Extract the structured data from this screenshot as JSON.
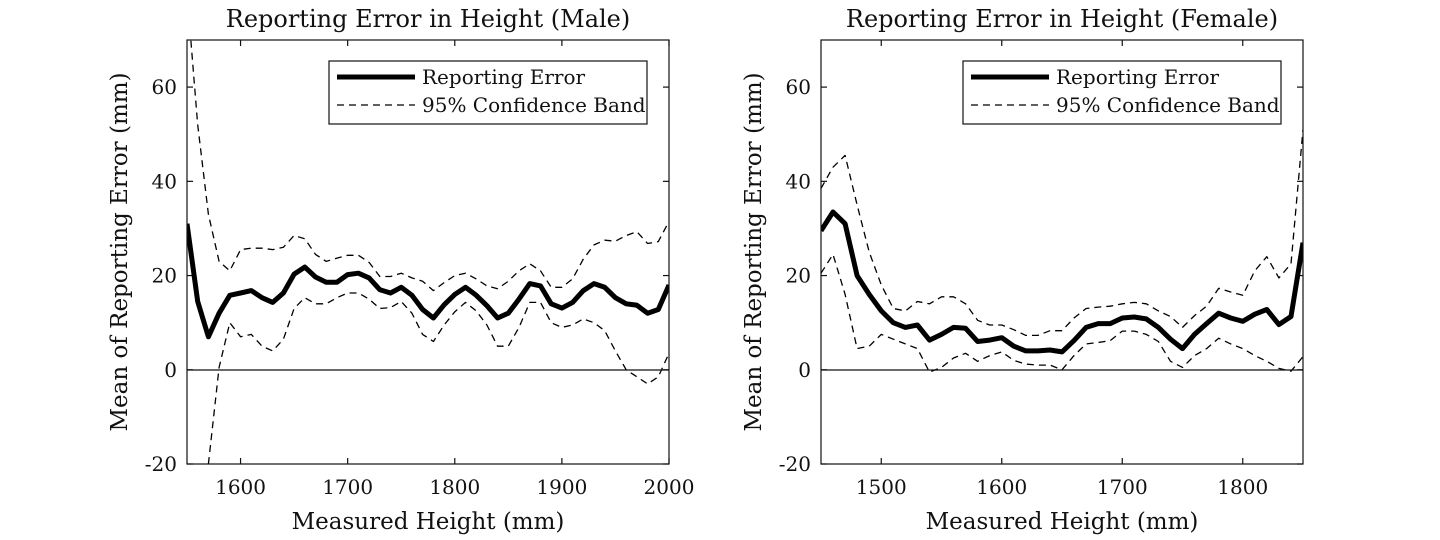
{
  "chart_data": [
    {
      "type": "line",
      "title": "Reporting Error in Height (Male)",
      "xlabel": "Measured Height (mm)",
      "ylabel": "Mean of Reporting Error (mm)",
      "xlim": [
        1550,
        2000
      ],
      "ylim": [
        -20,
        70
      ],
      "xticks": [
        1600,
        1700,
        1800,
        1900,
        2000
      ],
      "yticks": [
        -20,
        0,
        20,
        40,
        60
      ],
      "reference_line_y": 0,
      "legend": {
        "position": "top-right",
        "entries": [
          "Reporting Error",
          "95% Confidence Band"
        ]
      },
      "series": [
        {
          "name": "Reporting Error",
          "x": [
            1550,
            1560,
            1570,
            1580,
            1590,
            1600,
            1610,
            1620,
            1630,
            1640,
            1650,
            1660,
            1670,
            1680,
            1690,
            1700,
            1710,
            1720,
            1730,
            1740,
            1750,
            1760,
            1770,
            1780,
            1790,
            1800,
            1810,
            1820,
            1830,
            1840,
            1850,
            1860,
            1870,
            1880,
            1890,
            1900,
            1910,
            1920,
            1930,
            1940,
            1950,
            1960,
            1970,
            1980,
            1990,
            2000
          ],
          "y": [
            31,
            14.5,
            7,
            12,
            15.8,
            16.3,
            16.8,
            15.3,
            14.3,
            16.3,
            20.3,
            21.8,
            19.7,
            18.6,
            18.6,
            20.2,
            20.5,
            19.5,
            17,
            16.3,
            17.5,
            15.8,
            12.8,
            11,
            13.8,
            16,
            17.5,
            15.8,
            13.6,
            11,
            12,
            15,
            18.3,
            17.8,
            14,
            13.1,
            14.3,
            16.8,
            18.3,
            17.5,
            15.3,
            14,
            13.7,
            12,
            12.8,
            18
          ]
        },
        {
          "name": "95% Confidence Band",
          "x": [
            1550,
            1560,
            1570,
            1580,
            1590,
            1600,
            1610,
            1620,
            1630,
            1640,
            1650,
            1660,
            1670,
            1680,
            1690,
            1700,
            1710,
            1720,
            1730,
            1740,
            1750,
            1760,
            1770,
            1780,
            1790,
            1800,
            1810,
            1820,
            1830,
            1840,
            1850,
            1860,
            1870,
            1880,
            1890,
            1900,
            1910,
            1920,
            1930,
            1940,
            1950,
            1960,
            1970,
            1980,
            1990,
            2000
          ],
          "y": [
            80,
            52,
            33,
            23,
            21,
            25.5,
            25.8,
            25.8,
            25.5,
            26,
            28.5,
            27.8,
            24.5,
            23,
            23.7,
            24.3,
            24.3,
            22.8,
            19.8,
            19.8,
            20.5,
            19.5,
            18.8,
            16.8,
            18.5,
            20,
            20.5,
            19.3,
            17.8,
            17.2,
            18.8,
            21,
            22.5,
            21,
            17.5,
            17.5,
            19.3,
            23.5,
            26.5,
            27.5,
            27.3,
            28.5,
            29.3,
            26.8,
            27.2,
            31.5
          ]
        },
        {
          "name": "95% Confidence Band",
          "x": [
            1570,
            1580,
            1590,
            1600,
            1610,
            1620,
            1630,
            1640,
            1650,
            1660,
            1670,
            1680,
            1690,
            1700,
            1710,
            1720,
            1730,
            1740,
            1750,
            1760,
            1770,
            1780,
            1790,
            1800,
            1810,
            1820,
            1830,
            1840,
            1850,
            1860,
            1870,
            1880,
            1890,
            1900,
            1910,
            1920,
            1930,
            1940,
            1950,
            1960,
            1970,
            1980,
            1990,
            2000
          ],
          "y": [
            -20,
            0.5,
            10,
            7,
            7.5,
            5,
            4,
            6.5,
            13,
            15.3,
            14,
            14,
            15.3,
            16.3,
            16.3,
            15,
            13,
            13.2,
            14.5,
            12,
            7.5,
            6,
            9.5,
            12.3,
            14.3,
            12.5,
            9.5,
            5,
            5,
            9,
            14.3,
            14.3,
            10,
            9,
            9.5,
            10.8,
            10,
            8.3,
            4,
            0,
            -1.5,
            -3,
            -1.5,
            3.5
          ]
        }
      ]
    },
    {
      "type": "line",
      "title": "Reporting Error in Height (Female)",
      "xlabel": "Measured Height (mm)",
      "ylabel": "Mean of Reporting Error (mm)",
      "xlim": [
        1450,
        1850
      ],
      "ylim": [
        -20,
        70
      ],
      "xticks": [
        1500,
        1600,
        1700,
        1800
      ],
      "yticks": [
        -20,
        0,
        20,
        40,
        60
      ],
      "reference_line_y": 0,
      "legend": {
        "position": "top-right",
        "entries": [
          "Reporting Error",
          "95% Confidence Band"
        ]
      },
      "series": [
        {
          "name": "Reporting Error",
          "x": [
            1450,
            1460,
            1470,
            1480,
            1490,
            1500,
            1510,
            1520,
            1530,
            1540,
            1550,
            1560,
            1570,
            1580,
            1590,
            1600,
            1610,
            1620,
            1630,
            1640,
            1650,
            1660,
            1670,
            1680,
            1690,
            1700,
            1710,
            1720,
            1730,
            1740,
            1750,
            1760,
            1770,
            1780,
            1790,
            1800,
            1810,
            1820,
            1830,
            1840,
            1850
          ],
          "y": [
            29.5,
            33.5,
            31,
            20,
            16,
            12.5,
            10,
            9,
            9.5,
            6.3,
            7.5,
            9,
            8.8,
            6,
            6.3,
            6.8,
            5,
            4,
            4,
            4.2,
            3.8,
            6.2,
            9,
            9.8,
            9.8,
            11,
            11.2,
            10.8,
            9,
            6.5,
            4.5,
            7.5,
            9.8,
            12,
            11,
            10.3,
            11.8,
            12.8,
            9.6,
            11.3,
            27
          ]
        },
        {
          "name": "95% Confidence Band",
          "x": [
            1450,
            1460,
            1470,
            1480,
            1490,
            1500,
            1510,
            1520,
            1530,
            1540,
            1550,
            1560,
            1570,
            1580,
            1590,
            1600,
            1610,
            1620,
            1630,
            1640,
            1650,
            1660,
            1670,
            1680,
            1690,
            1700,
            1710,
            1720,
            1730,
            1740,
            1750,
            1760,
            1770,
            1780,
            1790,
            1800,
            1810,
            1820,
            1830,
            1840,
            1850
          ],
          "y": [
            38.5,
            43,
            45.5,
            35,
            25,
            18,
            13,
            12.5,
            14.5,
            14,
            15.5,
            15.5,
            14,
            10.5,
            9.5,
            9.5,
            8.5,
            7.3,
            7.3,
            8.3,
            8.3,
            11,
            13,
            13.3,
            13.5,
            14,
            14.3,
            14,
            12.5,
            11.3,
            9,
            11.5,
            13.5,
            17.3,
            16.5,
            15.8,
            21,
            24,
            19.5,
            22.5,
            51
          ]
        },
        {
          "name": "95% Confidence Band",
          "x": [
            1450,
            1460,
            1470,
            1480,
            1490,
            1500,
            1510,
            1520,
            1530,
            1540,
            1550,
            1560,
            1570,
            1580,
            1590,
            1600,
            1610,
            1620,
            1630,
            1640,
            1650,
            1660,
            1670,
            1680,
            1690,
            1700,
            1710,
            1720,
            1730,
            1740,
            1750,
            1760,
            1770,
            1780,
            1790,
            1800,
            1810,
            1820,
            1830,
            1840,
            1850
          ],
          "y": [
            20.5,
            24.5,
            16,
            4.5,
            5,
            7.5,
            6.5,
            5.5,
            4.5,
            -0.5,
            0.5,
            2.5,
            3.5,
            1.8,
            3,
            3.8,
            2,
            1.2,
            1,
            1,
            0,
            3,
            5.5,
            5.8,
            6.2,
            8.2,
            8.2,
            7.5,
            6,
            1.8,
            0.5,
            3,
            4.5,
            6.7,
            5.5,
            4.5,
            3,
            1.8,
            0.3,
            -0.3,
            2.8
          ]
        }
      ]
    }
  ]
}
